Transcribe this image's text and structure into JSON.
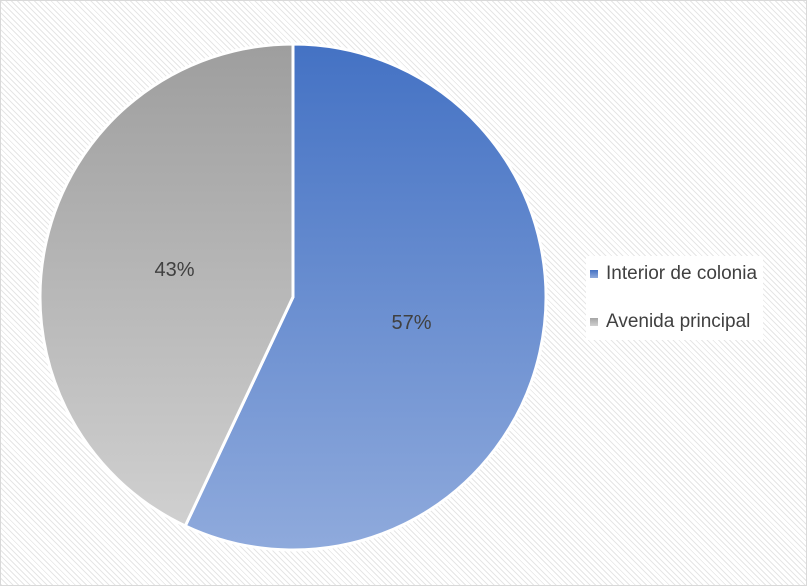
{
  "chart_data": {
    "type": "pie",
    "categories": [
      "Interior de colonia",
      "Avenida principal"
    ],
    "values": [
      57,
      43
    ],
    "labels": [
      "57%",
      "43%"
    ],
    "colors": [
      "#4472c4",
      "#a5a5a5"
    ],
    "legend_position": "right",
    "start_angle": "top, clockwise"
  }
}
